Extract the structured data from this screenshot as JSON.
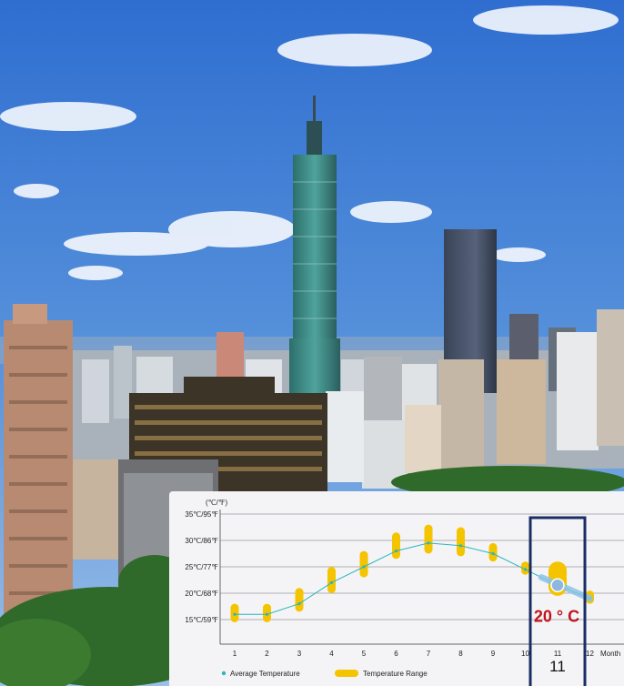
{
  "chart_data": {
    "type": "line",
    "unit_label": "(℃/℉)",
    "x_axis_label": "Month",
    "x_ticks": [
      "1",
      "2",
      "3",
      "4",
      "5",
      "6",
      "7",
      "8",
      "9",
      "10",
      "11",
      "12"
    ],
    "y_ticks": [
      {
        "value": 15,
        "label": "15℃/59℉"
      },
      {
        "value": 20,
        "label": "20℃/68℉"
      },
      {
        "value": 25,
        "label": "25℃/77℉"
      },
      {
        "value": 30,
        "label": "30℃/86℉"
      },
      {
        "value": 35,
        "label": "35℃/95℉"
      }
    ],
    "ylim": [
      10,
      35
    ],
    "grid": true,
    "series": [
      {
        "name": "Average Temperature",
        "color": "#2bb5bd",
        "type": "line",
        "x": [
          1,
          2,
          3,
          4,
          5,
          6,
          7,
          8,
          9,
          10,
          11,
          12
        ],
        "values": [
          16,
          16,
          18,
          22,
          25,
          28,
          29.5,
          29,
          27.5,
          24.5,
          21.5,
          19
        ]
      },
      {
        "name": "Temperature Range",
        "color": "#f5c400",
        "type": "range",
        "x": [
          1,
          2,
          3,
          4,
          5,
          6,
          7,
          8,
          9,
          10,
          11,
          12
        ],
        "low": [
          14.5,
          14.5,
          16.5,
          20,
          23,
          26.5,
          27.5,
          27,
          26,
          23.5,
          19.5,
          18
        ],
        "high": [
          18,
          18,
          21,
          25,
          28,
          31.5,
          33,
          32.5,
          29.5,
          26,
          26,
          20.5
        ]
      }
    ],
    "highlight": {
      "month": "11",
      "value_label": "20 ° C",
      "color": "#1a2e66"
    },
    "legend_position": "bottom-left"
  }
}
